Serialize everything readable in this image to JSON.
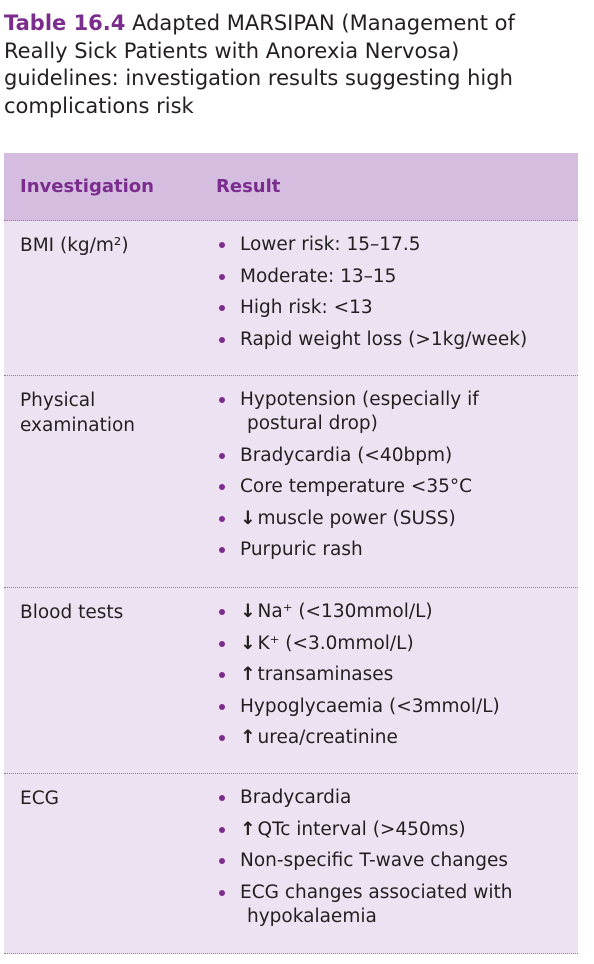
{
  "caption": {
    "number": "Table 16.4",
    "text": "Adapted MARSIPAN (Management of Really Sick Patients with Anorexia Nervosa) guidelines: investigation results suggesting high complications risk"
  },
  "headers": {
    "investigation": "Investigation",
    "result": "Result"
  },
  "rows": [
    {
      "label": "BMI (kg/m²)",
      "items": [
        {
          "text": "Lower risk: 15–17.5"
        },
        {
          "text": "Moderate: 13–15"
        },
        {
          "text": "High risk: <13"
        },
        {
          "text": "Rapid weight loss (>1kg/week)"
        }
      ]
    },
    {
      "label": "Physical examination",
      "items": [
        {
          "text": "Hypotension (especially if",
          "cont": "postural drop)"
        },
        {
          "text": "Bradycardia (<40bpm)"
        },
        {
          "text": "Core temperature <35°C"
        },
        {
          "arrow": "↓",
          "text": "muscle power (SUSS)"
        },
        {
          "text": "Purpuric rash"
        }
      ]
    },
    {
      "label": "Blood tests",
      "items": [
        {
          "arrow": "↓",
          "text": "Na⁺ (<130mmol/L)"
        },
        {
          "arrow": "↓",
          "text": "K⁺ (<3.0mmol/L)"
        },
        {
          "arrow": "↑",
          "text": "transaminases"
        },
        {
          "text": "Hypoglycaemia (<3mmol/L)"
        },
        {
          "arrow": "↑",
          "text": "urea/creatinine"
        }
      ]
    },
    {
      "label": "ECG",
      "items": [
        {
          "text": "Bradycardia"
        },
        {
          "arrow": "↑",
          "text": "QTc interval (>450ms)"
        },
        {
          "text": "Non-specific T-wave changes"
        },
        {
          "text": "ECG changes associated with",
          "cont": "hypokalaemia"
        }
      ]
    }
  ]
}
